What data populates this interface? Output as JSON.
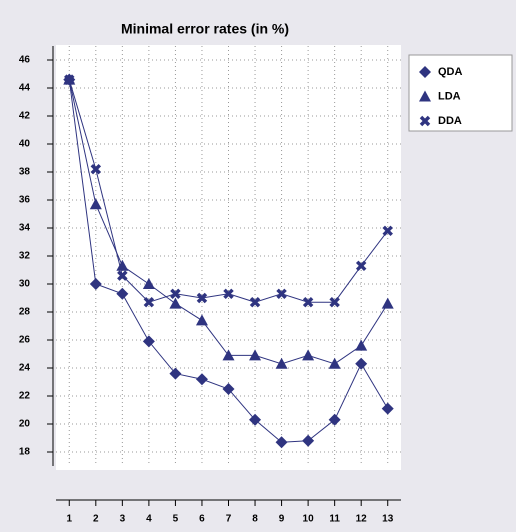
{
  "chart_data": {
    "type": "line",
    "title": "Minimal error rates (in %)",
    "x": [
      1,
      2,
      3,
      4,
      5,
      6,
      7,
      8,
      9,
      10,
      11,
      12,
      13
    ],
    "series": [
      {
        "name": "QDA",
        "color": "#2f3480",
        "marker": "diamond",
        "values": [
          44.6,
          30.0,
          29.3,
          25.9,
          23.6,
          23.2,
          22.5,
          20.3,
          18.7,
          18.8,
          20.3,
          24.3,
          21.1
        ]
      },
      {
        "name": "LDA",
        "color": "#2f3480",
        "marker": "triangle",
        "values": [
          44.6,
          35.7,
          31.3,
          30.0,
          28.6,
          27.4,
          24.9,
          24.9,
          24.3,
          24.9,
          24.3,
          25.6,
          28.6
        ]
      },
      {
        "name": "DDA",
        "color": "#2f3480",
        "marker": "cross",
        "values": [
          44.6,
          38.2,
          30.6,
          28.7,
          29.3,
          29.0,
          29.3,
          28.7,
          29.3,
          28.7,
          28.7,
          31.3,
          33.8
        ]
      }
    ],
    "xlim": [
      0.5,
      13.5
    ],
    "xticks": [
      1,
      2,
      3,
      4,
      5,
      6,
      7,
      8,
      9,
      10,
      11,
      12,
      13
    ],
    "ylim": [
      17,
      47
    ],
    "yticks": [
      18,
      20,
      22,
      24,
      26,
      28,
      30,
      32,
      34,
      36,
      38,
      40,
      42,
      44,
      46
    ],
    "grid": true,
    "legend": "top-right"
  }
}
